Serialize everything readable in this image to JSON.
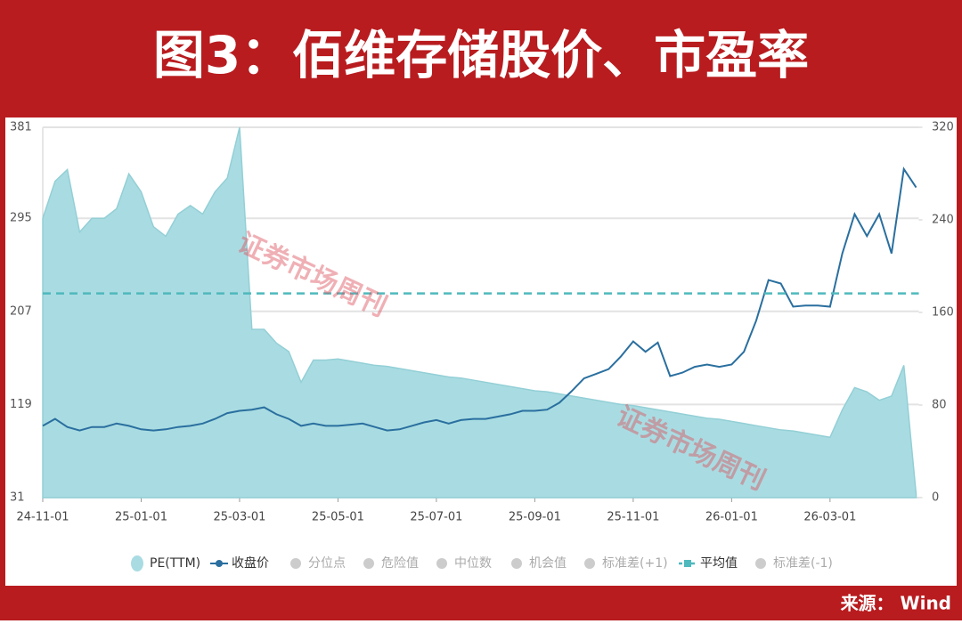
{
  "chart_data": {
    "type": "area-line",
    "title": "图3：佰维存储股价、市盈率",
    "source": "来源： Wind",
    "watermark": "证券市场周刊",
    "categories": [
      "24-11-01",
      null,
      null,
      null,
      null,
      null,
      null,
      null,
      "25-01-01",
      null,
      null,
      null,
      null,
      null,
      null,
      null,
      "25-03-01",
      null,
      null,
      null,
      null,
      null,
      null,
      null,
      "25-05-01",
      null,
      null,
      null,
      null,
      null,
      null,
      null,
      "25-07-01",
      null,
      null,
      null,
      null,
      null,
      null,
      null,
      "25-09-01",
      null,
      null,
      null,
      null,
      null,
      null,
      null,
      "25-11-01",
      null,
      null,
      null,
      null,
      null,
      null,
      null,
      "26-01-01",
      null,
      null,
      null,
      null,
      null,
      null,
      null,
      "26-03-01",
      null,
      null,
      null,
      null,
      null,
      null,
      null
    ],
    "series": [
      {
        "name": "PE(TTM)",
        "color": "#a9dce2",
        "axis": "y",
        "values": [
          295,
          330,
          341,
          282,
          295,
          295,
          304,
          337,
          320,
          287,
          278,
          299,
          307,
          299,
          320,
          333,
          381,
          190,
          190,
          177,
          169,
          140,
          161,
          161,
          162,
          160,
          158,
          156,
          155,
          153,
          151,
          149,
          147,
          145,
          144,
          142,
          140,
          138,
          136,
          134,
          132,
          131,
          129,
          127,
          125,
          123,
          121,
          119,
          118,
          116,
          114,
          112,
          110,
          108,
          106,
          105,
          103,
          101,
          99,
          97,
          95,
          94,
          92,
          90,
          88,
          114,
          135,
          131,
          123,
          127,
          156,
          34
        ]
      },
      {
        "name": "收盘价",
        "color": "#2a6f9f",
        "axis": "y2",
        "values": [
          62,
          68,
          61,
          58,
          61,
          61,
          64,
          62,
          59,
          58,
          59,
          61,
          62,
          64,
          68,
          73,
          75,
          76,
          78,
          72,
          68,
          62,
          64,
          62,
          62,
          63,
          64,
          61,
          58,
          59,
          62,
          65,
          67,
          64,
          67,
          68,
          68,
          70,
          72,
          75,
          75,
          76,
          82,
          92,
          103,
          107,
          111,
          122,
          135,
          126,
          134,
          105,
          108,
          113,
          115,
          113,
          115,
          126,
          153,
          188,
          185,
          165,
          166,
          166,
          165,
          211,
          245,
          226,
          245,
          211,
          284,
          268
        ]
      }
    ],
    "mean": {
      "name": "平均值",
      "value": 224,
      "color": "#4fb9bd"
    },
    "inactive_legend": [
      "分位点",
      "危险值",
      "中位数",
      "机会值",
      "标准差(+1)",
      "标准差(-1)"
    ],
    "ylim": [
      31,
      381
    ],
    "yticks": [
      31,
      119,
      207,
      295,
      381
    ],
    "y2lim": [
      0,
      320
    ],
    "y2ticks": [
      0,
      80,
      160,
      240,
      320
    ],
    "grid": true
  }
}
